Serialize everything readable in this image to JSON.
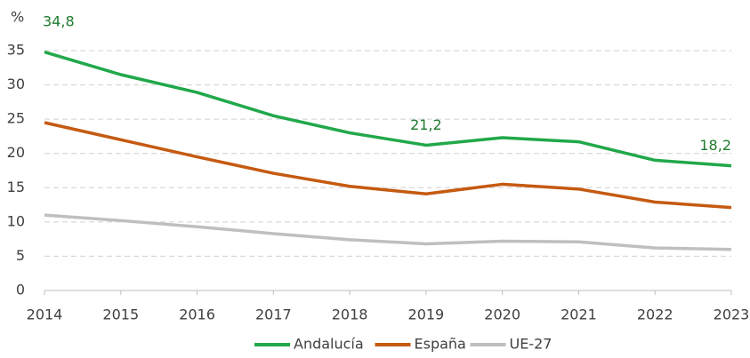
{
  "chart_data": {
    "type": "line",
    "y_label": "%",
    "x": [
      2014,
      2015,
      2016,
      2017,
      2018,
      2019,
      2020,
      2021,
      2022,
      2023
    ],
    "xlim": [
      2014,
      2023
    ],
    "xticks": [
      2014,
      2015,
      2016,
      2017,
      2018,
      2019,
      2020,
      2021,
      2022,
      2023
    ],
    "ylim": [
      0,
      35
    ],
    "yticks": [
      0,
      5,
      10,
      15,
      20,
      25,
      30,
      35
    ],
    "grid": true,
    "legend": "bottom",
    "series": [
      {
        "name": "Andalucía",
        "color": "#21a84a",
        "values": [
          34.8,
          31.5,
          28.9,
          25.5,
          23.0,
          21.2,
          22.3,
          21.7,
          19.0,
          18.2
        ],
        "value_labels": [
          "34,8",
          null,
          null,
          null,
          null,
          "21,2",
          null,
          null,
          null,
          "18,2"
        ]
      },
      {
        "name": "España",
        "color": "#c55a11",
        "values": [
          24.5,
          22.0,
          19.5,
          17.1,
          15.2,
          14.1,
          15.5,
          14.8,
          12.9,
          12.1
        ]
      },
      {
        "name": "UE-27",
        "color": "#bfbfbf",
        "values": [
          11.0,
          10.2,
          9.3,
          8.3,
          7.4,
          6.8,
          7.2,
          7.1,
          6.2,
          6.0
        ]
      }
    ]
  }
}
